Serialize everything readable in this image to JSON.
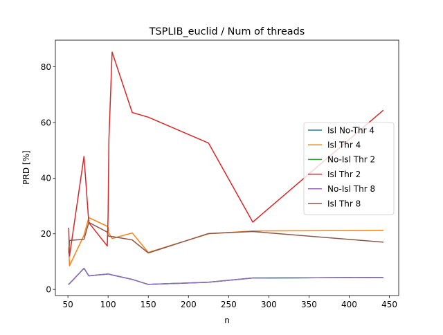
{
  "chart_data": {
    "type": "line",
    "title": "TSPLIB_euclid / Num of threads",
    "xlabel": "n",
    "ylabel": "PRD [%]",
    "xlim": [
      34.4,
      461.6
    ],
    "ylim": [
      -2.2,
      89.6
    ],
    "xticks": [
      50,
      100,
      150,
      200,
      250,
      300,
      350,
      400,
      450
    ],
    "yticks": [
      0,
      20,
      40,
      60,
      80
    ],
    "grid": false,
    "legend_position": "center-right",
    "series": [
      {
        "name": "Isl No-Thr 4",
        "color": "#1f77b4",
        "x": [
          51,
          52,
          70,
          76,
          99,
          100,
          101,
          105,
          130,
          150,
          225,
          280,
          442
        ],
        "y": [
          1.9,
          2.1,
          7.6,
          4.9,
          5.5,
          5.6,
          5.5,
          5.2,
          3.6,
          1.8,
          2.6,
          4.1,
          4.3
        ]
      },
      {
        "name": "Isl Thr 4",
        "color": "#ff7f0e",
        "x": [
          51,
          52,
          70,
          76,
          99,
          100,
          101,
          105,
          130,
          150,
          225,
          280,
          442
        ],
        "y": [
          15.0,
          8.5,
          19.5,
          25.8,
          22.7,
          22.3,
          20.2,
          18.3,
          20.3,
          13.3,
          20.0,
          21.0,
          21.2
        ]
      },
      {
        "name": "No-Isl Thr 2",
        "color": "#2ca02c",
        "x": [
          51,
          52,
          70,
          76,
          99,
          100,
          101,
          105,
          130,
          150,
          225,
          280,
          442
        ],
        "y": [
          1.9,
          2.1,
          7.6,
          4.9,
          5.5,
          5.6,
          5.5,
          5.2,
          3.6,
          1.8,
          2.6,
          4.1,
          4.3
        ]
      },
      {
        "name": "Isl Thr 2",
        "color": "#d62728",
        "x": [
          51,
          52,
          70,
          76,
          99,
          100,
          101,
          105,
          130,
          150,
          225,
          280,
          442
        ],
        "y": [
          22.0,
          12.0,
          47.8,
          24.0,
          15.6,
          26.7,
          53.8,
          85.3,
          63.6,
          61.9,
          52.6,
          24.2,
          64.3
        ]
      },
      {
        "name": "No-Isl Thr 8",
        "color": "#9467bd",
        "x": [
          51,
          52,
          70,
          76,
          99,
          100,
          101,
          105,
          130,
          150,
          225,
          280,
          442
        ],
        "y": [
          1.9,
          2.1,
          7.6,
          4.9,
          5.5,
          5.6,
          5.5,
          5.2,
          3.6,
          1.8,
          2.6,
          4.1,
          4.3
        ]
      },
      {
        "name": "Isl Thr 8",
        "color": "#8c564b",
        "x": [
          51,
          52,
          70,
          76,
          99,
          100,
          101,
          105,
          130,
          150,
          225,
          280,
          442
        ],
        "y": [
          13.2,
          17.6,
          18.0,
          24.1,
          20.6,
          19.4,
          19.1,
          19.0,
          17.8,
          13.1,
          20.1,
          20.8,
          17.0
        ]
      }
    ]
  }
}
